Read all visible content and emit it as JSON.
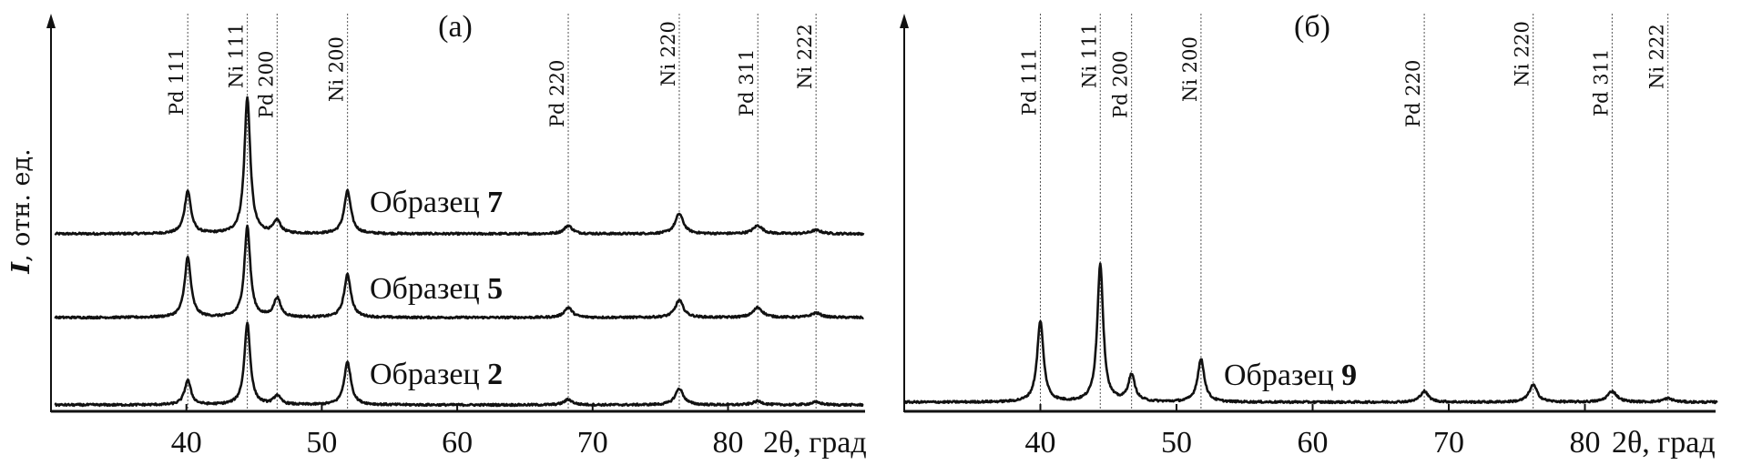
{
  "chart_data": [
    {
      "type": "line",
      "panel_label": "(a)",
      "xlabel": "2θ, град",
      "ylabel_symbol": "I",
      "ylabel_rest": ", отн. ед.",
      "xlim": [
        30,
        90
      ],
      "ylim": [
        0,
        440
      ],
      "xticks": [
        40,
        50,
        60,
        70,
        80
      ],
      "xtick_labels": [
        "40",
        "50",
        "60",
        "70",
        "80"
      ],
      "y_units": "arbitrary",
      "reflections": [
        {
          "label": "Pd 111",
          "two_theta": 40.1
        },
        {
          "label": "Ni 111",
          "two_theta": 44.5
        },
        {
          "label": "Pd 200",
          "two_theta": 46.7
        },
        {
          "label": "Ni 200",
          "two_theta": 51.9
        },
        {
          "label": "Pd 220",
          "two_theta": 68.2
        },
        {
          "label": "Ni 220",
          "two_theta": 76.4
        },
        {
          "label": "Pd 311",
          "two_theta": 82.2
        },
        {
          "label": "Ni 222",
          "two_theta": 86.5
        }
      ],
      "series": [
        {
          "name": "Образец 7",
          "label_text": "Образец",
          "label_number": "7",
          "baseline_offset": 195,
          "peak_intensities": [
            47,
            150,
            14,
            47,
            9,
            22,
            9,
            4
          ]
        },
        {
          "name": "Образец 5",
          "label_text": "Образец",
          "label_number": "5",
          "baseline_offset": 103,
          "peak_intensities": [
            66,
            100,
            21,
            47,
            11,
            19,
            11,
            5
          ]
        },
        {
          "name": "Образец 2",
          "label_text": "Образец",
          "label_number": "2",
          "baseline_offset": 7,
          "peak_intensities": [
            27,
            90,
            10,
            47,
            6,
            18,
            4,
            3
          ]
        }
      ]
    },
    {
      "type": "line",
      "panel_label": "(б)",
      "xlabel": "2θ, град",
      "xlim": [
        30,
        90
      ],
      "ylim": [
        0,
        440
      ],
      "xticks": [
        40,
        50,
        60,
        70,
        80
      ],
      "xtick_labels": [
        "40",
        "50",
        "60",
        "70",
        "80"
      ],
      "y_units": "arbitrary",
      "reflections": [
        {
          "label": "Pd 111",
          "two_theta": 40.0
        },
        {
          "label": "Ni 111",
          "two_theta": 44.4
        },
        {
          "label": "Pd 200",
          "two_theta": 46.7
        },
        {
          "label": "Ni 200",
          "two_theta": 51.8
        },
        {
          "label": "Pd 220",
          "two_theta": 68.2
        },
        {
          "label": "Ni 220",
          "two_theta": 76.2
        },
        {
          "label": "Pd 311",
          "two_theta": 82.0
        },
        {
          "label": "Ni 222",
          "two_theta": 86.1
        }
      ],
      "series": [
        {
          "name": "Образец 9",
          "label_text": "Образец",
          "label_number": "9",
          "baseline_offset": 10,
          "peak_intensities": [
            89,
            152,
            29,
            47,
            12,
            19,
            12,
            4
          ]
        }
      ]
    }
  ]
}
